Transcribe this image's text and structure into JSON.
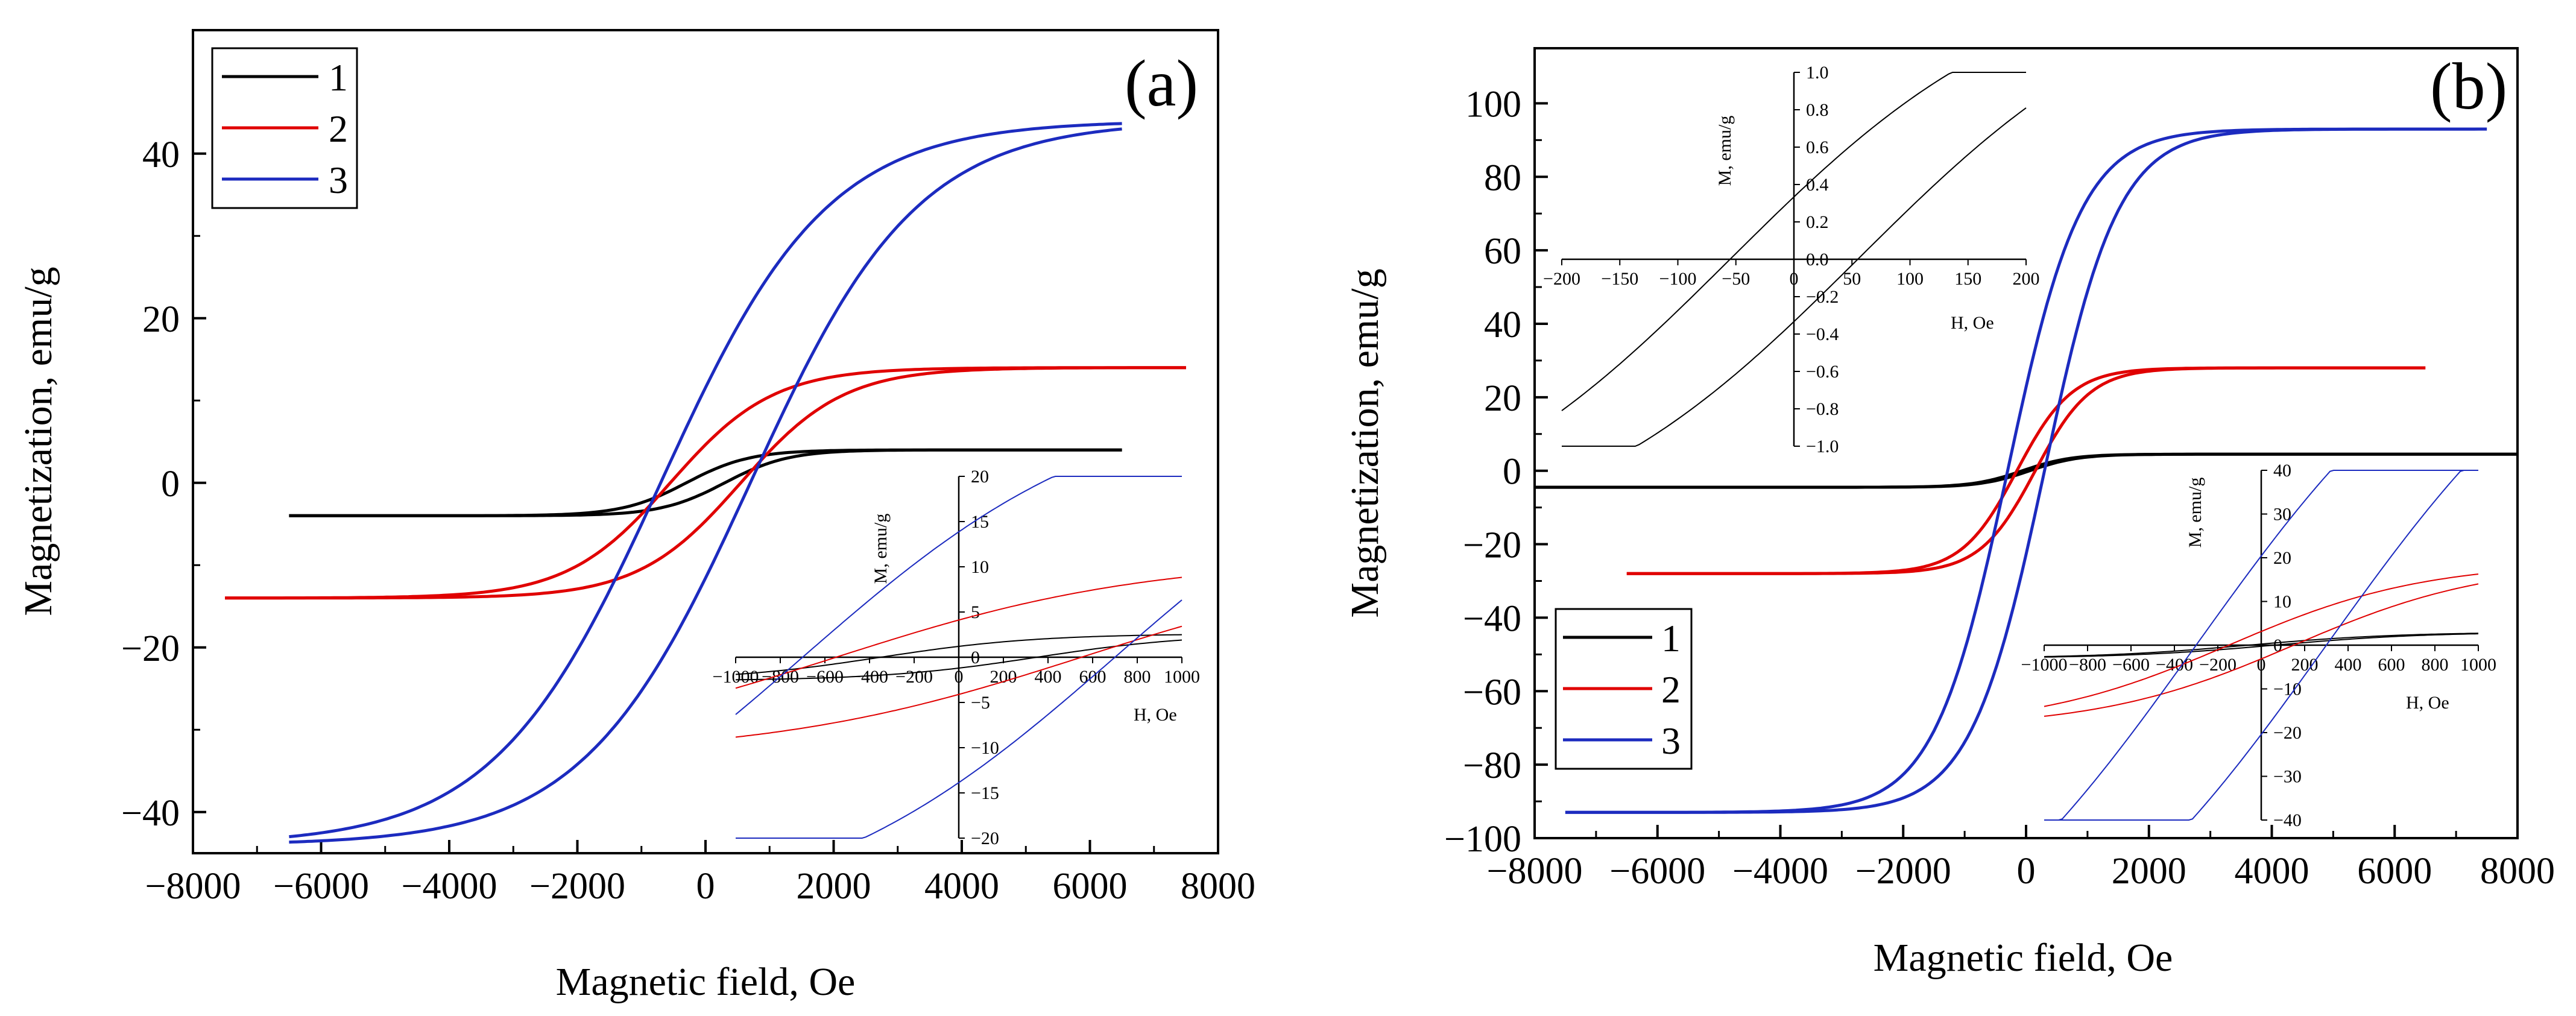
{
  "colors": {
    "s1": "#000000",
    "s2": "#e00000",
    "s3": "#1c2bbf",
    "axis": "#000000"
  },
  "chart_data": [
    {
      "id": "a",
      "type": "line",
      "panel_label": "(a)",
      "xlabel": "Magnetic field, Oe",
      "ylabel": "Magnetization, emu/g",
      "xlim": [
        -8000,
        8000
      ],
      "ylim": [
        -45,
        55
      ],
      "xticks": [
        -8000,
        -6000,
        -4000,
        -2000,
        0,
        2000,
        4000,
        6000,
        8000
      ],
      "xtick_labels": [
        "−8000",
        "−6000",
        "−4000",
        "−2000",
        "0",
        "2000",
        "4000",
        "6000",
        "8000"
      ],
      "yticks": [
        -40,
        -20,
        0,
        20,
        40
      ],
      "ytick_labels": [
        "−40",
        "−20",
        "0",
        "20",
        "40"
      ],
      "legend": [
        "1",
        "2",
        "3"
      ],
      "legend_position": "top-left",
      "series": [
        {
          "name": "1",
          "Ms": 4,
          "Hc": 300,
          "H0": 1000,
          "Hmax": 6500
        },
        {
          "name": "2",
          "Ms": 14,
          "Hc": 550,
          "H0": 1600,
          "Hmax": 7500
        },
        {
          "name": "3",
          "Ms": 44,
          "Hc": 700,
          "H0": 2600,
          "Hmax": 6500
        }
      ],
      "inset": {
        "xlabel": "H, Oe",
        "ylabel": "M, emu/g",
        "xlim": [
          -1000,
          1000
        ],
        "ylim": [
          -20,
          20
        ],
        "xticks": [
          -1000,
          -800,
          -600,
          -400,
          -200,
          0,
          200,
          400,
          600,
          800,
          1000
        ],
        "xtick_labels": [
          "−1000",
          "−800",
          "−600",
          "−400",
          "−200",
          "0",
          "200",
          "400",
          "600",
          "800",
          "1000"
        ],
        "yticks": [
          -20,
          -15,
          -10,
          -5,
          0,
          5,
          10,
          15,
          20
        ],
        "ytick_labels": [
          "−20",
          "−15",
          "−10",
          "−5",
          "0",
          "5",
          "10",
          "15",
          "20"
        ]
      }
    },
    {
      "id": "b",
      "type": "line",
      "panel_label": "(b)",
      "xlabel": "Magnetic field, Oe",
      "ylabel": "Magnetization, emu/g",
      "xlim": [
        -8000,
        8000
      ],
      "ylim": [
        -100,
        115
      ],
      "xticks": [
        -8000,
        -6000,
        -4000,
        -2000,
        0,
        2000,
        4000,
        6000,
        8000
      ],
      "xtick_labels": [
        "−8000",
        "−6000",
        "−4000",
        "−2000",
        "0",
        "2000",
        "4000",
        "6000",
        "8000"
      ],
      "yticks": [
        -100,
        -80,
        -60,
        -40,
        -20,
        0,
        20,
        40,
        60,
        80,
        100
      ],
      "ytick_labels": [
        "−100",
        "−80",
        "−60",
        "−40",
        "−20",
        "0",
        "20",
        "40",
        "60",
        "80",
        "100"
      ],
      "legend": [
        "1",
        "2",
        "3"
      ],
      "legend_position": "bottom-left",
      "series": [
        {
          "name": "1",
          "Ms": 4.5,
          "Hc": 60,
          "H0": 800,
          "Hmax": 8000
        },
        {
          "name": "2",
          "Ms": 28,
          "Hc": 150,
          "H0": 900,
          "Hmax": 6500
        },
        {
          "name": "3",
          "Ms": 93,
          "Hc": 300,
          "H0": 1200,
          "Hmax": 7500
        }
      ],
      "inset_top": {
        "xlabel": "H, Oe",
        "ylabel": "M, emu/g",
        "xlim": [
          -200,
          200
        ],
        "ylim": [
          -1.0,
          1.0
        ],
        "xticks": [
          -200,
          -150,
          -100,
          -50,
          0,
          50,
          100,
          150,
          200
        ],
        "xtick_labels": [
          "−200",
          "−150",
          "−100",
          "−50",
          "0",
          "50",
          "100",
          "150",
          "200"
        ],
        "yticks": [
          -1.0,
          -0.8,
          -0.6,
          -0.4,
          -0.2,
          0.0,
          0.2,
          0.4,
          0.6,
          0.8,
          1.0
        ],
        "ytick_labels": [
          "−1.0",
          "−0.8",
          "−0.6",
          "−0.4",
          "−0.2",
          "0.0",
          "0.2",
          "0.4",
          "0.6",
          "0.8",
          "1.0"
        ]
      },
      "inset_bottom": {
        "xlabel": "H, Oe",
        "ylabel": "M, emu/g",
        "xlim": [
          -1000,
          1000
        ],
        "ylim": [
          -40,
          40
        ],
        "xticks": [
          -1000,
          -800,
          -600,
          -400,
          -200,
          0,
          200,
          400,
          600,
          800,
          1000
        ],
        "xtick_labels": [
          "−1000",
          "−800",
          "−600",
          "−400",
          "−200",
          "0",
          "200",
          "400",
          "600",
          "800",
          "1000"
        ],
        "yticks": [
          -40,
          -30,
          -20,
          -10,
          0,
          10,
          20,
          30,
          40
        ],
        "ytick_labels": [
          "−40",
          "−30",
          "−20",
          "−10",
          "0",
          "10",
          "20",
          "30",
          "40"
        ]
      }
    }
  ]
}
